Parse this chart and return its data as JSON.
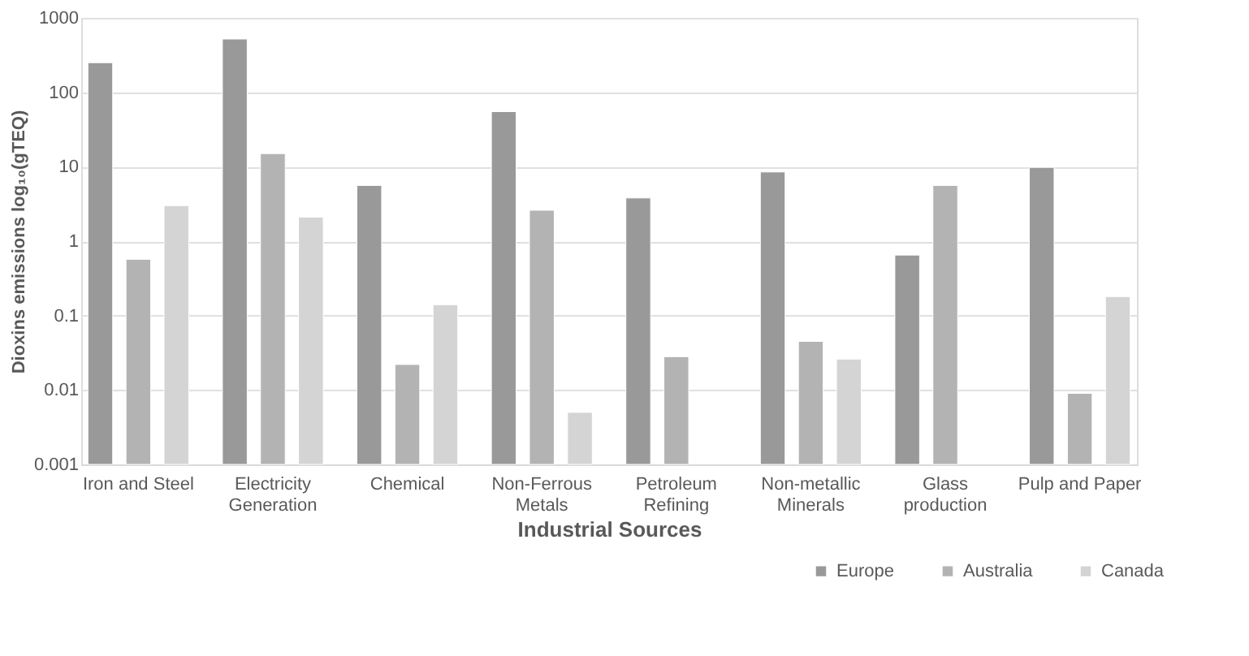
{
  "chart_data": {
    "type": "bar",
    "xlabel": "Industrial Sources",
    "ylabel": "Dioxins emissions log₁₀(gTEQ)",
    "categories": [
      "Iron and Steel",
      "Electricity Generation",
      "Chemical",
      "Non-Ferrous Metals",
      "Petroleum Refining",
      "Non-metallic Minerals",
      "Glass production",
      "Pulp and Paper"
    ],
    "series": [
      {
        "name": "Europe",
        "color": "#999999",
        "values": [
          250,
          520,
          5.6,
          55,
          3.8,
          8.5,
          0.65,
          9.8
        ]
      },
      {
        "name": "Australia",
        "color": "#b3b3b3",
        "values": [
          0.57,
          15,
          0.022,
          2.6,
          0.028,
          0.045,
          5.6,
          0.009
        ]
      },
      {
        "name": "Canada",
        "color": "#d4d4d4",
        "values": [
          3,
          2.1,
          0.14,
          0.005,
          null,
          0.026,
          null,
          0.18
        ]
      }
    ],
    "log": true,
    "ylim": [
      0.001,
      1000
    ],
    "yticks": [
      0.001,
      0.01,
      0.1,
      1,
      10,
      100,
      1000
    ],
    "grid": "y",
    "legend": "bottom right"
  }
}
